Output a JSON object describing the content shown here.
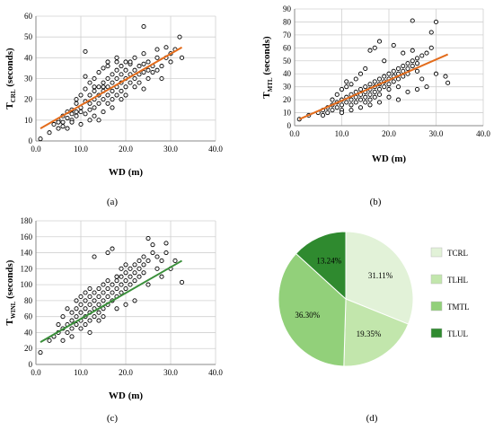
{
  "captions": [
    "(a)",
    "(b)",
    "(c)",
    "(d)"
  ],
  "chart_data": [
    {
      "type": "scatter",
      "panel": "a",
      "ylabel_main": "T",
      "ylabel_sub": "CRL",
      "ylabel_unit": "(seconds)",
      "xlabel": "WD (m)",
      "xlim": [
        0,
        40
      ],
      "ylim": [
        0,
        60
      ],
      "xticks": [
        "0.0",
        "10.0",
        "20.0",
        "30.0",
        "40.0"
      ],
      "yticks": [
        "0",
        "10",
        "20",
        "30",
        "40",
        "50",
        "60"
      ],
      "grid": true,
      "trend_color": "#e36c1c",
      "trend": [
        [
          1,
          6
        ],
        [
          32.5,
          45
        ]
      ],
      "points": [
        [
          1,
          1
        ],
        [
          3,
          4
        ],
        [
          4,
          8
        ],
        [
          5,
          10
        ],
        [
          5,
          6
        ],
        [
          6,
          12
        ],
        [
          6,
          9
        ],
        [
          7,
          11
        ],
        [
          7,
          14
        ],
        [
          7,
          6
        ],
        [
          8,
          15
        ],
        [
          8,
          10
        ],
        [
          8,
          13
        ],
        [
          9,
          18
        ],
        [
          9,
          12
        ],
        [
          9,
          20
        ],
        [
          10,
          16
        ],
        [
          10,
          22
        ],
        [
          10,
          14
        ],
        [
          10,
          8
        ],
        [
          11,
          19
        ],
        [
          11,
          25
        ],
        [
          11,
          13
        ],
        [
          11,
          31
        ],
        [
          11,
          43
        ],
        [
          12,
          18
        ],
        [
          12,
          22
        ],
        [
          12,
          28
        ],
        [
          12,
          15
        ],
        [
          12,
          10
        ],
        [
          13,
          20
        ],
        [
          13,
          24
        ],
        [
          13,
          30
        ],
        [
          13,
          16
        ],
        [
          13,
          12
        ],
        [
          14,
          22
        ],
        [
          14,
          26
        ],
        [
          14,
          18
        ],
        [
          14,
          33
        ],
        [
          14,
          10
        ],
        [
          15,
          24
        ],
        [
          15,
          28
        ],
        [
          15,
          20
        ],
        [
          15,
          14
        ],
        [
          15,
          35
        ],
        [
          16,
          22
        ],
        [
          16,
          26
        ],
        [
          16,
          30
        ],
        [
          16,
          18
        ],
        [
          16,
          36
        ],
        [
          17,
          24
        ],
        [
          17,
          28
        ],
        [
          17,
          32
        ],
        [
          17,
          20
        ],
        [
          17,
          16
        ],
        [
          18,
          26
        ],
        [
          18,
          30
        ],
        [
          18,
          34
        ],
        [
          18,
          22
        ],
        [
          18,
          38
        ],
        [
          19,
          28
        ],
        [
          19,
          24
        ],
        [
          19,
          32
        ],
        [
          19,
          20
        ],
        [
          20,
          30
        ],
        [
          20,
          26
        ],
        [
          20,
          34
        ],
        [
          20,
          22
        ],
        [
          21,
          32
        ],
        [
          21,
          28
        ],
        [
          21,
          37
        ],
        [
          22,
          30
        ],
        [
          22,
          26
        ],
        [
          22,
          34
        ],
        [
          22,
          40
        ],
        [
          23,
          32
        ],
        [
          23,
          28
        ],
        [
          23,
          36
        ],
        [
          24,
          33
        ],
        [
          24,
          42
        ],
        [
          24,
          55
        ],
        [
          24,
          25
        ],
        [
          25,
          34
        ],
        [
          25,
          30
        ],
        [
          25,
          38
        ],
        [
          26,
          33
        ],
        [
          26,
          36
        ],
        [
          27,
          34
        ],
        [
          27,
          44
        ],
        [
          28,
          36
        ],
        [
          28,
          30
        ],
        [
          29,
          40
        ],
        [
          29,
          45
        ],
        [
          30,
          38
        ],
        [
          30,
          42
        ],
        [
          31,
          44
        ],
        [
          32,
          50
        ],
        [
          32.5,
          40
        ],
        [
          21,
          38
        ],
        [
          19,
          36
        ],
        [
          18,
          40
        ],
        [
          15,
          26
        ],
        [
          13,
          26
        ],
        [
          9,
          14
        ],
        [
          8,
          9
        ],
        [
          6,
          7
        ],
        [
          5,
          9
        ],
        [
          16,
          38
        ],
        [
          20,
          38
        ],
        [
          24,
          37
        ],
        [
          27,
          40
        ]
      ]
    },
    {
      "type": "scatter",
      "panel": "b",
      "ylabel_main": "T",
      "ylabel_sub": "MTL",
      "ylabel_unit": "(seconds)",
      "xlabel": "WD (m)",
      "xlim": [
        0,
        40
      ],
      "ylim": [
        0,
        90
      ],
      "xticks": [
        "0.0",
        "10.0",
        "20.0",
        "30.0",
        "40.0"
      ],
      "yticks": [
        "0",
        "10",
        "20",
        "30",
        "40",
        "50",
        "60",
        "70",
        "80",
        "90"
      ],
      "grid": true,
      "trend_color": "#e36c1c",
      "trend": [
        [
          1,
          5
        ],
        [
          32.5,
          55
        ]
      ],
      "points": [
        [
          1,
          5
        ],
        [
          3,
          8
        ],
        [
          5,
          10
        ],
        [
          6,
          12
        ],
        [
          6,
          8
        ],
        [
          7,
          14
        ],
        [
          7,
          10
        ],
        [
          8,
          16
        ],
        [
          8,
          12
        ],
        [
          8,
          20
        ],
        [
          9,
          18
        ],
        [
          9,
          14
        ],
        [
          9,
          24
        ],
        [
          10,
          20
        ],
        [
          10,
          16
        ],
        [
          10,
          28
        ],
        [
          10,
          12
        ],
        [
          11,
          22
        ],
        [
          11,
          18
        ],
        [
          11,
          30
        ],
        [
          11,
          34
        ],
        [
          12,
          24
        ],
        [
          12,
          20
        ],
        [
          12,
          16
        ],
        [
          12,
          32
        ],
        [
          13,
          26
        ],
        [
          13,
          22
        ],
        [
          13,
          18
        ],
        [
          13,
          36
        ],
        [
          14,
          28
        ],
        [
          14,
          24
        ],
        [
          14,
          20
        ],
        [
          14,
          40
        ],
        [
          15,
          30
        ],
        [
          15,
          26
        ],
        [
          15,
          22
        ],
        [
          15,
          44
        ],
        [
          15,
          18
        ],
        [
          16,
          32
        ],
        [
          16,
          28
        ],
        [
          16,
          24
        ],
        [
          16,
          58
        ],
        [
          16,
          20
        ],
        [
          17,
          34
        ],
        [
          17,
          30
        ],
        [
          17,
          26
        ],
        [
          17,
          60
        ],
        [
          17,
          22
        ],
        [
          18,
          36
        ],
        [
          18,
          32
        ],
        [
          18,
          28
        ],
        [
          18,
          65
        ],
        [
          18,
          24
        ],
        [
          19,
          38
        ],
        [
          19,
          34
        ],
        [
          19,
          30
        ],
        [
          19,
          50
        ],
        [
          20,
          40
        ],
        [
          20,
          36
        ],
        [
          20,
          32
        ],
        [
          20,
          28
        ],
        [
          21,
          42
        ],
        [
          21,
          38
        ],
        [
          21,
          34
        ],
        [
          21,
          62
        ],
        [
          22,
          44
        ],
        [
          22,
          40
        ],
        [
          22,
          36
        ],
        [
          22,
          30
        ],
        [
          23,
          46
        ],
        [
          23,
          42
        ],
        [
          23,
          38
        ],
        [
          23,
          56
        ],
        [
          24,
          48
        ],
        [
          24,
          44
        ],
        [
          24,
          40
        ],
        [
          25,
          50
        ],
        [
          25,
          46
        ],
        [
          25,
          81
        ],
        [
          25,
          58
        ],
        [
          26,
          52
        ],
        [
          26,
          48
        ],
        [
          26,
          42
        ],
        [
          27,
          54
        ],
        [
          27,
          36
        ],
        [
          28,
          56
        ],
        [
          28,
          30
        ],
        [
          29,
          72
        ],
        [
          29,
          60
        ],
        [
          30,
          80
        ],
        [
          30,
          40
        ],
        [
          32,
          38
        ],
        [
          32.5,
          33
        ],
        [
          20,
          22
        ],
        [
          18,
          18
        ],
        [
          16,
          16
        ],
        [
          14,
          14
        ],
        [
          22,
          20
        ],
        [
          24,
          26
        ],
        [
          26,
          28
        ],
        [
          12,
          12
        ],
        [
          10,
          10
        ]
      ]
    },
    {
      "type": "scatter",
      "panel": "c",
      "ylabel_main": "T",
      "ylabel_sub": "WINL",
      "ylabel_unit": "(seconds)",
      "xlabel": "WD (m)",
      "xlim": [
        0,
        40
      ],
      "ylim": [
        0,
        180
      ],
      "xticks": [
        "0.0",
        "10.0",
        "20.0",
        "30.0",
        "40.0"
      ],
      "yticks": [
        "0",
        "20",
        "40",
        "60",
        "80",
        "100",
        "120",
        "140",
        "160",
        "180"
      ],
      "grid": true,
      "trend_color": "#3a8f3a",
      "trend": [
        [
          1,
          28
        ],
        [
          32.5,
          130
        ]
      ],
      "points": [
        [
          1,
          15
        ],
        [
          3,
          30
        ],
        [
          4,
          35
        ],
        [
          5,
          40
        ],
        [
          5,
          50
        ],
        [
          6,
          45
        ],
        [
          6,
          30
        ],
        [
          6,
          60
        ],
        [
          7,
          50
        ],
        [
          7,
          40
        ],
        [
          7,
          70
        ],
        [
          8,
          55
        ],
        [
          8,
          45
        ],
        [
          8,
          65
        ],
        [
          8,
          35
        ],
        [
          9,
          60
        ],
        [
          9,
          50
        ],
        [
          9,
          70
        ],
        [
          9,
          80
        ],
        [
          10,
          65
        ],
        [
          10,
          55
        ],
        [
          10,
          75
        ],
        [
          10,
          45
        ],
        [
          10,
          85
        ],
        [
          11,
          70
        ],
        [
          11,
          60
        ],
        [
          11,
          80
        ],
        [
          11,
          90
        ],
        [
          11,
          50
        ],
        [
          12,
          75
        ],
        [
          12,
          65
        ],
        [
          12,
          85
        ],
        [
          12,
          55
        ],
        [
          12,
          95
        ],
        [
          13,
          80
        ],
        [
          13,
          70
        ],
        [
          13,
          60
        ],
        [
          13,
          90
        ],
        [
          13,
          135
        ],
        [
          14,
          85
        ],
        [
          14,
          75
        ],
        [
          14,
          65
        ],
        [
          14,
          95
        ],
        [
          15,
          90
        ],
        [
          15,
          80
        ],
        [
          15,
          70
        ],
        [
          15,
          100
        ],
        [
          15,
          60
        ],
        [
          16,
          95
        ],
        [
          16,
          85
        ],
        [
          16,
          75
        ],
        [
          16,
          105
        ],
        [
          16,
          140
        ],
        [
          17,
          100
        ],
        [
          17,
          90
        ],
        [
          17,
          80
        ],
        [
          17,
          145
        ],
        [
          18,
          105
        ],
        [
          18,
          95
        ],
        [
          18,
          85
        ],
        [
          18,
          110
        ],
        [
          19,
          110
        ],
        [
          19,
          100
        ],
        [
          19,
          90
        ],
        [
          19,
          120
        ],
        [
          20,
          115
        ],
        [
          20,
          105
        ],
        [
          20,
          95
        ],
        [
          20,
          125
        ],
        [
          21,
          120
        ],
        [
          21,
          110
        ],
        [
          21,
          100
        ],
        [
          22,
          125
        ],
        [
          22,
          115
        ],
        [
          22,
          105
        ],
        [
          23,
          130
        ],
        [
          23,
          120
        ],
        [
          23,
          110
        ],
        [
          24,
          135
        ],
        [
          24,
          125
        ],
        [
          24,
          115
        ],
        [
          25,
          158
        ],
        [
          25,
          130
        ],
        [
          25,
          100
        ],
        [
          26,
          140
        ],
        [
          26,
          150
        ],
        [
          27,
          120
        ],
        [
          27,
          135
        ],
        [
          28,
          130
        ],
        [
          28,
          110
        ],
        [
          29,
          152
        ],
        [
          29,
          140
        ],
        [
          30,
          120
        ],
        [
          31,
          130
        ],
        [
          32.5,
          103
        ],
        [
          14,
          55
        ],
        [
          12,
          40
        ],
        [
          18,
          70
        ],
        [
          22,
          80
        ],
        [
          20,
          75
        ]
      ]
    },
    {
      "type": "pie",
      "panel": "d",
      "categories": [
        "TCRL",
        "TLHL",
        "TMTL",
        "TLUL"
      ],
      "values": [
        31.11,
        19.35,
        36.3,
        13.24
      ],
      "labels": [
        "31.11%",
        "19.35%",
        "36.30%",
        "13.24%"
      ],
      "colors": [
        "#e2f2d8",
        "#c2e6ac",
        "#92d07a",
        "#2f8a2f"
      ],
      "legend_position": "right"
    }
  ]
}
